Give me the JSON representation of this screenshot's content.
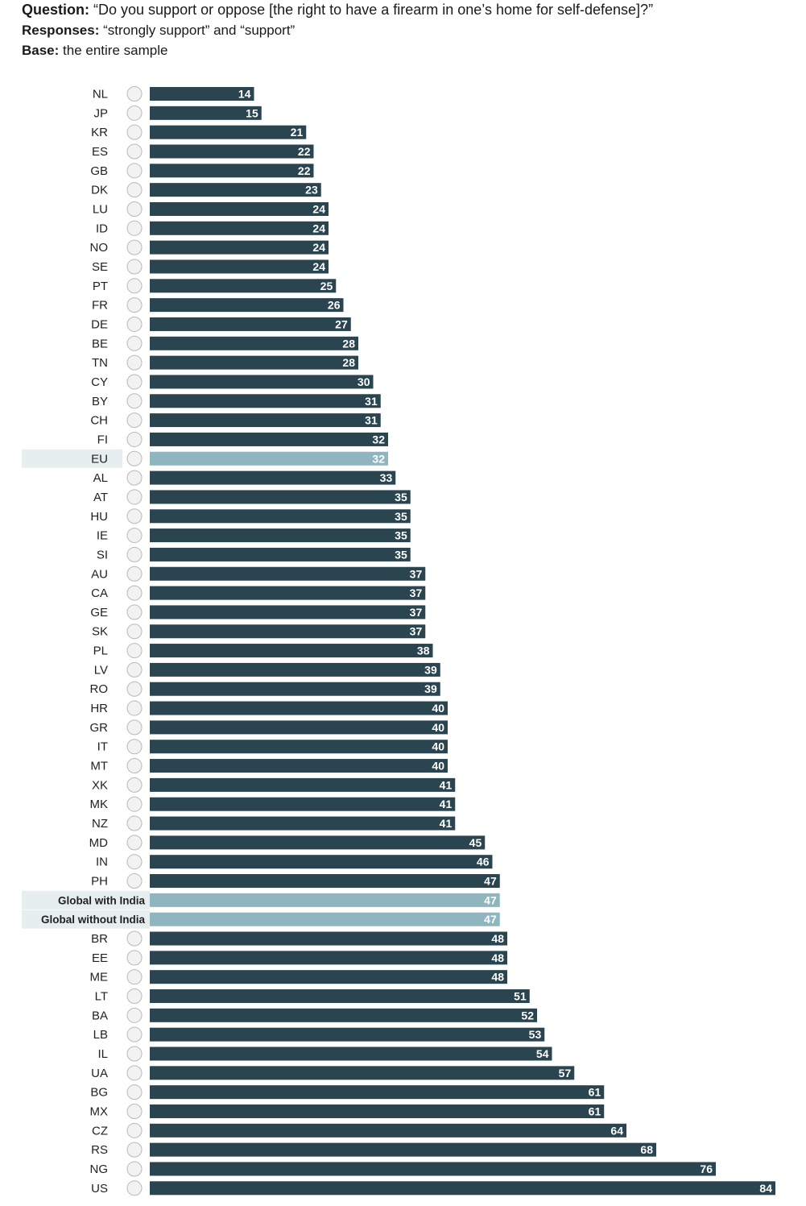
{
  "header": {
    "question_label": "Question:",
    "question_text": "“Do you support or oppose [the right to have a firearm in one’s home for self-defense]?”",
    "responses_label": "Responses:",
    "responses_text": "“strongly support” and “support”",
    "base_label": "Base:",
    "base_text": "the entire sample"
  },
  "colors": {
    "bar": "#2a4550",
    "highlight_bar": "#8fb5bf",
    "highlight_row": "#e7eef0"
  },
  "chart_data": {
    "type": "bar",
    "orientation": "horizontal",
    "title": "",
    "xlabel": "",
    "ylabel": "",
    "xlim": [
      0,
      84
    ],
    "grid": false,
    "categories": [
      "NL",
      "JP",
      "KR",
      "ES",
      "GB",
      "DK",
      "LU",
      "ID",
      "NO",
      "SE",
      "PT",
      "FR",
      "DE",
      "BE",
      "TN",
      "CY",
      "BY",
      "CH",
      "FI",
      "EU",
      "AL",
      "AT",
      "HU",
      "IE",
      "SI",
      "AU",
      "CA",
      "GE",
      "SK",
      "PL",
      "LV",
      "RO",
      "HR",
      "GR",
      "IT",
      "MT",
      "XK",
      "MK",
      "NZ",
      "MD",
      "IN",
      "PH",
      "Global with India",
      "Global without India",
      "BR",
      "EE",
      "ME",
      "LT",
      "BA",
      "LB",
      "IL",
      "UA",
      "BG",
      "MX",
      "CZ",
      "RS",
      "NG",
      "US"
    ],
    "values": [
      14,
      15,
      21,
      22,
      22,
      23,
      24,
      24,
      24,
      24,
      25,
      26,
      27,
      28,
      28,
      30,
      31,
      31,
      32,
      32,
      33,
      35,
      35,
      35,
      35,
      37,
      37,
      37,
      37,
      38,
      39,
      39,
      40,
      40,
      40,
      40,
      41,
      41,
      41,
      45,
      46,
      47,
      47,
      47,
      48,
      48,
      48,
      51,
      52,
      53,
      54,
      57,
      61,
      61,
      64,
      68,
      76,
      84
    ],
    "highlighted": [
      "EU",
      "Global with India",
      "Global without India"
    ]
  }
}
